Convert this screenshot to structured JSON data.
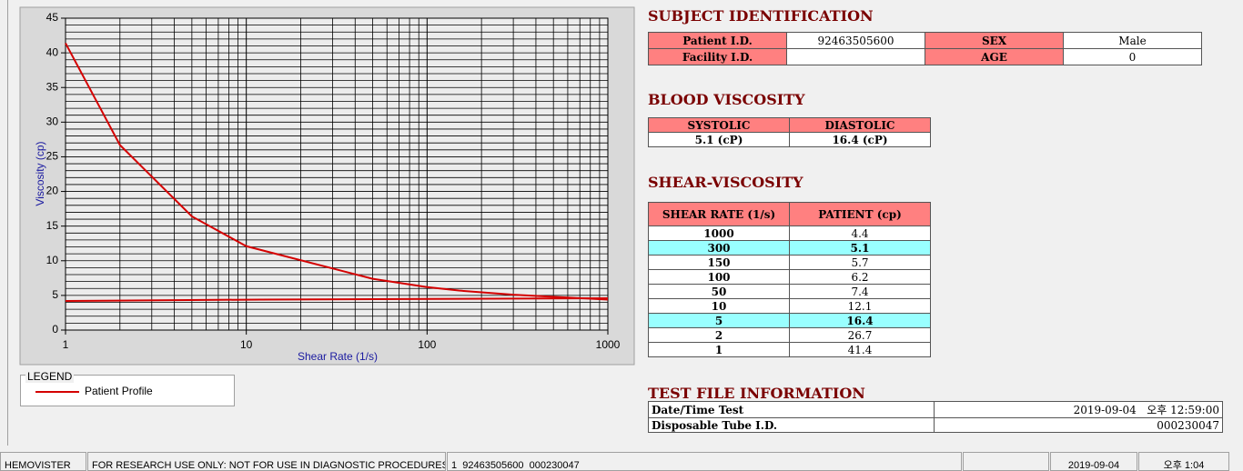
{
  "chart_data": {
    "type": "line",
    "xlabel": "Shear Rate (1/s)",
    "ylabel": "Viscosity (cp)",
    "x": [
      1,
      2,
      5,
      10,
      50,
      100,
      150,
      300,
      1000
    ],
    "series": [
      {
        "name": "Patient Profile",
        "color": "#d40000",
        "values": [
          41.4,
          26.7,
          16.4,
          12.1,
          7.4,
          6.2,
          5.7,
          5.1,
          4.4
        ]
      }
    ],
    "reference": {
      "x": [
        1,
        12,
        1000
      ],
      "values": [
        4.2,
        4.4,
        4.6
      ],
      "color": "#d40000"
    },
    "xlim": [
      1,
      1000
    ],
    "ylim": [
      0,
      45
    ],
    "xticks": [
      1,
      10,
      100,
      1000
    ],
    "yticks": [
      0,
      5,
      10,
      15,
      20,
      25,
      30,
      35,
      40,
      45
    ],
    "xscale": "log",
    "grid": true,
    "legend_title": "LEGEND"
  },
  "subject_identification": {
    "title": "SUBJECT IDENTIFICATION",
    "rows": [
      [
        "Patient I.D.",
        "92463505600",
        "SEX",
        "Male"
      ],
      [
        "Facility I.D.",
        null,
        "AGE",
        0
      ]
    ]
  },
  "blood_viscosity": {
    "title": "BLOOD VISCOSITY",
    "headers": [
      "SYSTOLIC",
      "DIASTOLIC"
    ],
    "values": [
      "5.1 (cP)",
      "16.4 (cP)"
    ]
  },
  "shear_viscosity": {
    "title": "SHEAR-VISCOSITY",
    "headers": [
      "SHEAR RATE (1/s)",
      "PATIENT (cp)"
    ],
    "rows": [
      [
        1000,
        4.4
      ],
      [
        300,
        5.1
      ],
      [
        150,
        5.7
      ],
      [
        100,
        6.2
      ],
      [
        50,
        7.4
      ],
      [
        10,
        12.1
      ],
      [
        5,
        16.4
      ],
      [
        2,
        26.7
      ],
      [
        1,
        41.4
      ]
    ],
    "highlight_rows": [
      1,
      6
    ]
  },
  "test_file_information": {
    "title": "TEST FILE INFORMATION",
    "rows": [
      [
        "Date/Time Test",
        "2019-09-04   오후 12:59:00"
      ],
      [
        "Disposable Tube I.D.",
        "000230047"
      ]
    ]
  },
  "status_bar": [
    "HEMOVISTER",
    "FOR RESEARCH USE ONLY: NOT FOR USE IN DIAGNOSTIC PROCEDURES",
    "1  92463505600  000230047",
    "2019-09-04",
    "오후 1:04"
  ]
}
